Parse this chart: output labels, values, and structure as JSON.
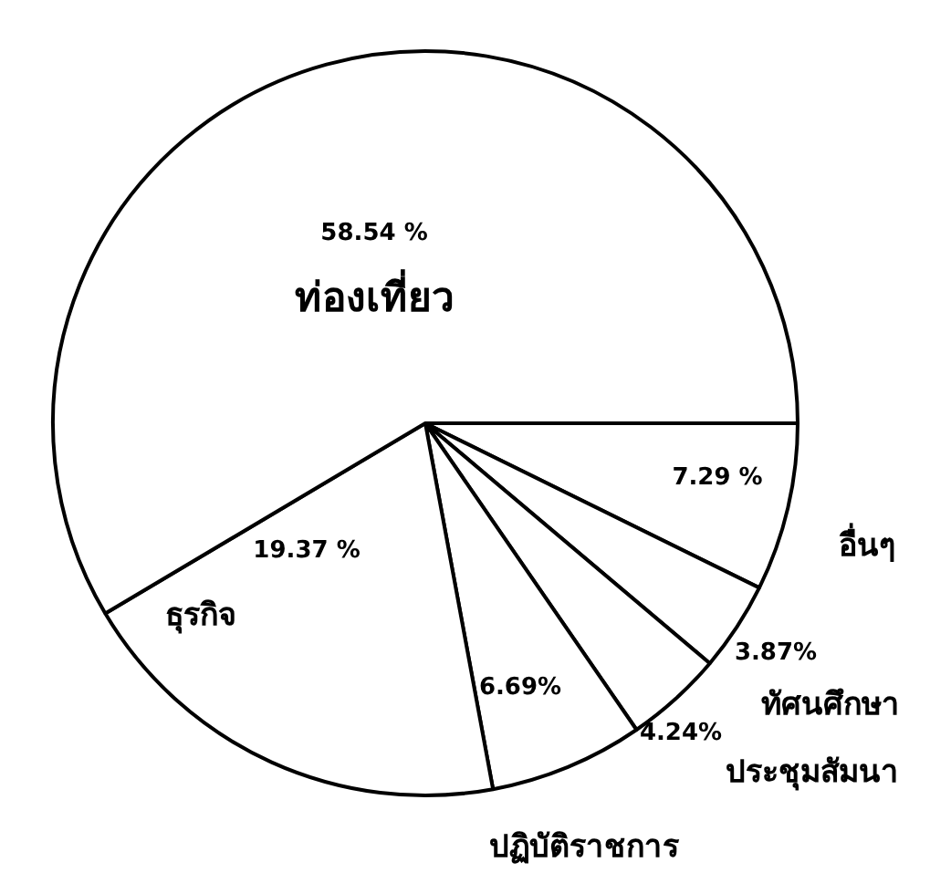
{
  "chart_data": {
    "type": "pie",
    "categories": [
      "อื่นๆ",
      "ทัศนศึกษา",
      "ประชุมสัมนา",
      "ปฏิบัติราชการ",
      "ธุรกิจ",
      "ท่องเที่ยว"
    ],
    "values": [
      7.29,
      3.87,
      4.24,
      6.69,
      19.37,
      58.54
    ],
    "value_labels": [
      "7.29 %",
      "3.87%",
      "4.24%",
      "6.69%",
      "19.37 %",
      "58.54 %"
    ],
    "colors": [
      "#ffffff",
      "#ffffff",
      "#ffffff",
      "#ffffff",
      "#ffffff",
      "#ffffff"
    ],
    "legend": false
  }
}
